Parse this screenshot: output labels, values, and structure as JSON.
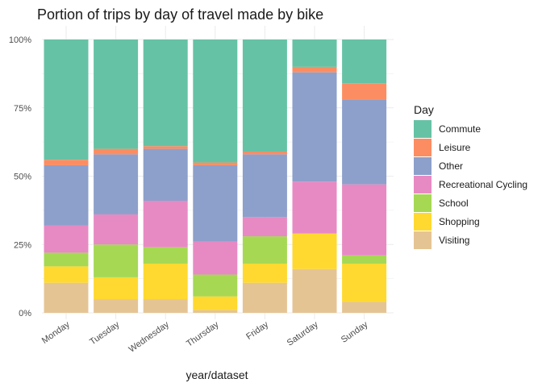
{
  "chart_data": {
    "type": "bar",
    "stacked": true,
    "percent": true,
    "title": "Portion of trips by day of travel made by bike",
    "xlabel": "year/dataset",
    "ylabel": "",
    "ylim": [
      0,
      1
    ],
    "yticks": [
      "0%",
      "25%",
      "50%",
      "75%",
      "100%"
    ],
    "categories": [
      "Monday",
      "Tuesday",
      "Wednesday",
      "Thursday",
      "Friday",
      "Saturday",
      "Sunday"
    ],
    "legend_title": "Day",
    "legend_position": "right",
    "grid": true,
    "series": [
      {
        "name": "Commute",
        "color": "#66c2a5",
        "values": [
          0.44,
          0.4,
          0.39,
          0.45,
          0.41,
          0.1,
          0.16
        ]
      },
      {
        "name": "Leisure",
        "color": "#fc8d62",
        "values": [
          0.02,
          0.02,
          0.01,
          0.01,
          0.01,
          0.02,
          0.06
        ]
      },
      {
        "name": "Other",
        "color": "#8da0cb",
        "values": [
          0.22,
          0.22,
          0.19,
          0.28,
          0.23,
          0.4,
          0.31
        ]
      },
      {
        "name": "Recreational Cycling",
        "color": "#e78ac3",
        "values": [
          0.1,
          0.11,
          0.17,
          0.12,
          0.07,
          0.19,
          0.26
        ]
      },
      {
        "name": "School",
        "color": "#a6d854",
        "values": [
          0.05,
          0.12,
          0.06,
          0.08,
          0.1,
          0.0,
          0.03
        ]
      },
      {
        "name": "Shopping",
        "color": "#ffd92f",
        "values": [
          0.06,
          0.08,
          0.13,
          0.05,
          0.07,
          0.13,
          0.14
        ]
      },
      {
        "name": "Visiting",
        "color": "#e5c494",
        "values": [
          0.11,
          0.05,
          0.05,
          0.01,
          0.11,
          0.16,
          0.04
        ]
      }
    ]
  }
}
